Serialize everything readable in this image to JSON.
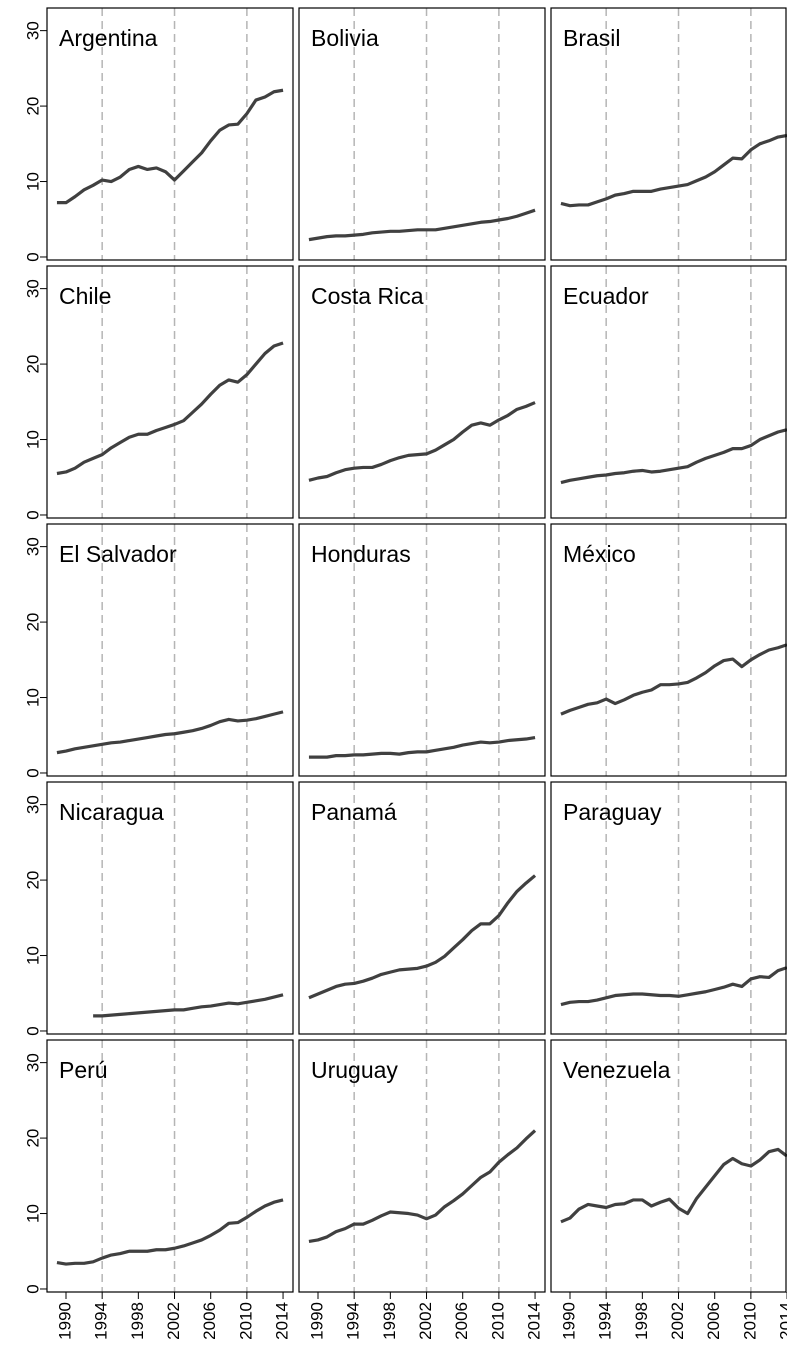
{
  "chart_data": {
    "type": "line",
    "x": [
      1989,
      1990,
      1991,
      1992,
      1993,
      1994,
      1995,
      1996,
      1997,
      1998,
      1999,
      2000,
      2001,
      2002,
      2003,
      2004,
      2005,
      2006,
      2007,
      2008,
      2009,
      2010,
      2011,
      2012,
      2013,
      2014
    ],
    "xlim": [
      1987.9,
      2015.1
    ],
    "xticks": [
      1990,
      1994,
      1998,
      2002,
      2006,
      2010,
      2014
    ],
    "ylim": [
      -0.4,
      33.0
    ],
    "yticks": [
      0,
      10,
      20,
      30
    ],
    "vlines": [
      1994,
      2002,
      2010
    ],
    "color": "#404040",
    "series": [
      {
        "name": "Argentina",
        "values": [
          7.2,
          7.2,
          8.0,
          8.9,
          9.5,
          10.2,
          10.0,
          10.6,
          11.6,
          12.0,
          11.6,
          11.8,
          11.3,
          10.2,
          11.4,
          12.6,
          13.8,
          15.4,
          16.8,
          17.5,
          17.6,
          19.0,
          20.8,
          21.2,
          21.9,
          22.1
        ]
      },
      {
        "name": "Bolivia",
        "values": [
          2.3,
          2.5,
          2.7,
          2.8,
          2.8,
          2.9,
          3.0,
          3.2,
          3.3,
          3.4,
          3.4,
          3.5,
          3.6,
          3.6,
          3.6,
          3.8,
          4.0,
          4.2,
          4.4,
          4.6,
          4.7,
          4.9,
          5.1,
          5.4,
          5.8,
          6.2
        ]
      },
      {
        "name": "Brasil",
        "values": [
          7.1,
          6.8,
          6.9,
          6.9,
          7.3,
          7.7,
          8.2,
          8.4,
          8.7,
          8.7,
          8.7,
          9.0,
          9.2,
          9.4,
          9.6,
          10.1,
          10.6,
          11.3,
          12.2,
          13.1,
          13.0,
          14.2,
          15.0,
          15.4,
          15.9,
          16.1
        ]
      },
      {
        "name": "Chile",
        "values": [
          5.5,
          5.7,
          6.2,
          7.0,
          7.5,
          8.0,
          8.9,
          9.6,
          10.3,
          10.7,
          10.7,
          11.2,
          11.6,
          12.0,
          12.5,
          13.6,
          14.7,
          16.0,
          17.2,
          17.9,
          17.6,
          18.6,
          20.0,
          21.4,
          22.4,
          22.8
        ]
      },
      {
        "name": "Costa Rica",
        "values": [
          4.6,
          4.9,
          5.1,
          5.6,
          6.0,
          6.2,
          6.3,
          6.3,
          6.7,
          7.2,
          7.6,
          7.9,
          8.0,
          8.1,
          8.6,
          9.3,
          10.0,
          11.0,
          11.9,
          12.2,
          11.9,
          12.6,
          13.2,
          14.0,
          14.4,
          14.9
        ]
      },
      {
        "name": "Ecuador",
        "values": [
          4.3,
          4.6,
          4.8,
          5.0,
          5.2,
          5.3,
          5.5,
          5.6,
          5.8,
          5.9,
          5.7,
          5.8,
          6.0,
          6.2,
          6.4,
          7.0,
          7.5,
          7.9,
          8.3,
          8.8,
          8.8,
          9.2,
          10.0,
          10.5,
          11.0,
          11.3
        ]
      },
      {
        "name": "El Salvador",
        "values": [
          2.7,
          2.9,
          3.2,
          3.4,
          3.6,
          3.8,
          4.0,
          4.1,
          4.3,
          4.5,
          4.7,
          4.9,
          5.1,
          5.2,
          5.4,
          5.6,
          5.9,
          6.3,
          6.8,
          7.1,
          6.9,
          7.0,
          7.2,
          7.5,
          7.8,
          8.1
        ]
      },
      {
        "name": "Honduras",
        "values": [
          2.1,
          2.1,
          2.1,
          2.3,
          2.3,
          2.4,
          2.4,
          2.5,
          2.6,
          2.6,
          2.5,
          2.7,
          2.8,
          2.8,
          3.0,
          3.2,
          3.4,
          3.7,
          3.9,
          4.1,
          4.0,
          4.1,
          4.3,
          4.4,
          4.5,
          4.7
        ]
      },
      {
        "name": "México",
        "values": [
          7.8,
          8.3,
          8.7,
          9.1,
          9.3,
          9.8,
          9.2,
          9.7,
          10.3,
          10.7,
          11.0,
          11.7,
          11.7,
          11.8,
          12.0,
          12.6,
          13.3,
          14.2,
          14.9,
          15.1,
          14.1,
          15.0,
          15.7,
          16.3,
          16.6,
          17.0
        ]
      },
      {
        "name": "Nicaragua",
        "values": [
          null,
          null,
          null,
          null,
          2.0,
          2.0,
          2.1,
          2.2,
          2.3,
          2.4,
          2.5,
          2.6,
          2.7,
          2.8,
          2.8,
          3.0,
          3.2,
          3.3,
          3.5,
          3.7,
          3.6,
          3.8,
          4.0,
          4.2,
          4.5,
          4.8
        ]
      },
      {
        "name": "Panamá",
        "values": [
          4.4,
          4.9,
          5.4,
          5.9,
          6.2,
          6.3,
          6.6,
          7.0,
          7.5,
          7.8,
          8.1,
          8.2,
          8.3,
          8.6,
          9.1,
          9.9,
          11.0,
          12.1,
          13.3,
          14.2,
          14.2,
          15.3,
          17.0,
          18.5,
          19.6,
          20.6
        ]
      },
      {
        "name": "Paraguay",
        "values": [
          3.5,
          3.8,
          3.9,
          3.9,
          4.1,
          4.4,
          4.7,
          4.8,
          4.9,
          4.9,
          4.8,
          4.7,
          4.7,
          4.6,
          4.8,
          5.0,
          5.2,
          5.5,
          5.8,
          6.2,
          5.9,
          6.9,
          7.2,
          7.1,
          8.0,
          8.4
        ]
      },
      {
        "name": "Perú",
        "values": [
          3.5,
          3.3,
          3.4,
          3.4,
          3.6,
          4.1,
          4.5,
          4.7,
          5.0,
          5.0,
          5.0,
          5.2,
          5.2,
          5.4,
          5.7,
          6.1,
          6.5,
          7.1,
          7.8,
          8.7,
          8.8,
          9.5,
          10.3,
          11.0,
          11.5,
          11.8
        ]
      },
      {
        "name": "Uruguay",
        "values": [
          6.3,
          6.5,
          6.9,
          7.6,
          8.0,
          8.6,
          8.6,
          9.1,
          9.7,
          10.2,
          10.1,
          10.0,
          9.8,
          9.3,
          9.8,
          10.9,
          11.7,
          12.6,
          13.7,
          14.8,
          15.5,
          16.8,
          17.8,
          18.7,
          19.9,
          21.0
        ]
      },
      {
        "name": "Venezuela",
        "values": [
          8.9,
          9.4,
          10.6,
          11.2,
          11.0,
          10.8,
          11.2,
          11.3,
          11.8,
          11.8,
          11.0,
          11.5,
          11.9,
          10.7,
          10.0,
          12.0,
          13.5,
          15.0,
          16.5,
          17.3,
          16.6,
          16.3,
          17.1,
          18.2,
          18.5,
          17.6
        ]
      }
    ]
  }
}
